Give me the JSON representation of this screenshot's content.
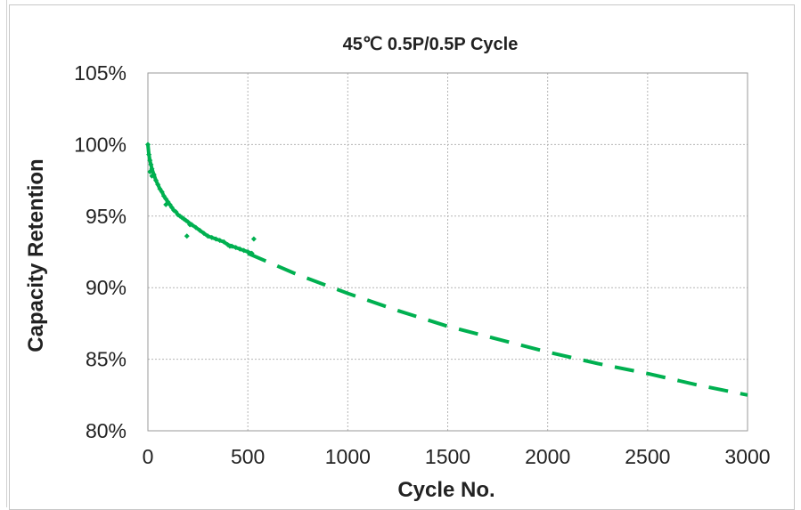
{
  "chart_data": {
    "type": "scatter",
    "title": "45℃ 0.5P/0.5P Cycle",
    "xlabel": "Cycle No.",
    "ylabel": "Capacity Retention",
    "xlim": [
      0,
      3000
    ],
    "ylim": [
      80,
      105
    ],
    "x_ticks": [
      0,
      500,
      1000,
      1500,
      2000,
      2500,
      3000
    ],
    "y_ticks": [
      80,
      85,
      90,
      95,
      100,
      105
    ],
    "x_tick_labels": [
      "0",
      "500",
      "1000",
      "1500",
      "2000",
      "2500",
      "3000"
    ],
    "y_tick_labels": [
      "80%",
      "85%",
      "90%",
      "95%",
      "100%",
      "105%"
    ],
    "grid": true,
    "legend": "none",
    "series": [
      {
        "style": "markers",
        "color": "#00b050",
        "x": [
          0,
          5,
          10,
          15,
          20,
          30,
          40,
          50,
          60,
          70,
          80,
          90,
          100,
          110,
          120,
          130,
          140,
          150,
          160,
          170,
          180,
          190,
          200,
          220,
          240,
          260,
          280,
          300,
          320,
          340,
          360,
          380,
          400,
          420,
          440,
          460,
          480,
          500,
          520
        ],
        "y": [
          100.0,
          99.3,
          98.9,
          98.6,
          98.3,
          97.9,
          97.5,
          97.2,
          96.9,
          96.7,
          96.4,
          96.2,
          96.0,
          95.8,
          95.6,
          95.4,
          95.3,
          95.1,
          95.0,
          94.9,
          94.8,
          94.7,
          94.6,
          94.4,
          94.2,
          94.0,
          93.8,
          93.6,
          93.5,
          93.4,
          93.3,
          93.2,
          93.0,
          92.9,
          92.8,
          92.7,
          92.6,
          92.5,
          92.4
        ]
      },
      {
        "style": "outliers",
        "color": "#00b050",
        "x": [
          10,
          20,
          90,
          195,
          210,
          410,
          530
        ],
        "y": [
          98.1,
          97.8,
          95.8,
          93.6,
          94.4,
          92.9,
          93.4
        ]
      },
      {
        "style": "dashed-trend",
        "color": "#00b050",
        "x": [
          500,
          750,
          1000,
          1250,
          1500,
          1750,
          2000,
          2250,
          2500,
          2750,
          3000
        ],
        "y": [
          92.4,
          90.9,
          89.6,
          88.4,
          87.3,
          86.4,
          85.5,
          84.7,
          84.0,
          83.2,
          82.5
        ]
      }
    ]
  }
}
